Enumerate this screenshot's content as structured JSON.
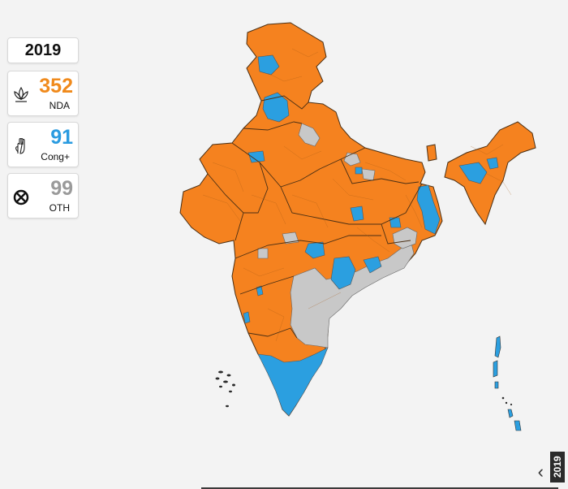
{
  "year_label": "2019",
  "tallies": {
    "nda": {
      "count": "352",
      "label": "NDA",
      "color": "#f08a1c",
      "icon": "lotus-icon"
    },
    "cong": {
      "count": "91",
      "label": "Cong+",
      "color": "#2a9be0",
      "icon": "hand-icon"
    },
    "oth": {
      "count": "99",
      "label": "OTH",
      "color": "#9a9a9a",
      "icon": "cross-circle-icon"
    }
  },
  "side_tab_label": "2019",
  "colors": {
    "nda": "#f5821f",
    "cong": "#2b9fe0",
    "other": "#c8c8c8",
    "border": "#3a2a1a"
  }
}
